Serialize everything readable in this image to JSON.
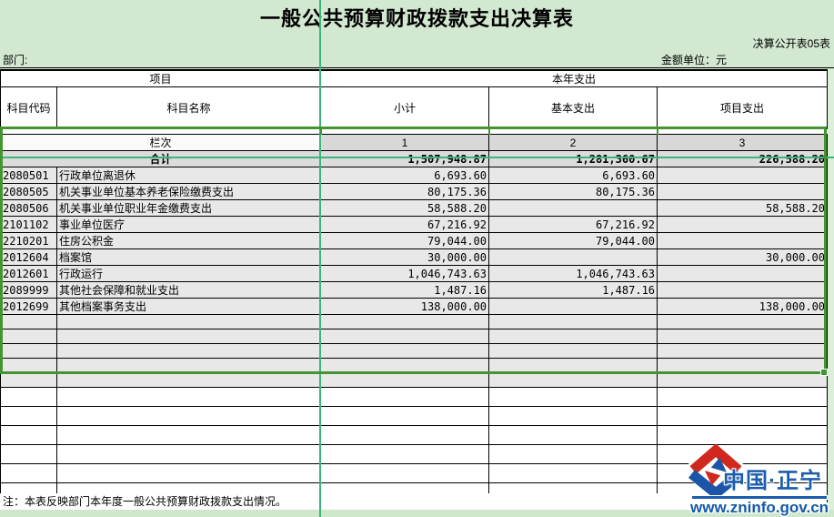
{
  "title": "一般公共预算财政拨款支出决算表",
  "meta": {
    "sheet_label": "决算公开表05表",
    "department_label": "部门:",
    "unit_label": "金额单位：元"
  },
  "table": {
    "header": {
      "group_left": "项目",
      "group_right": "本年支出",
      "col_code": "科目代码",
      "col_name": "科目名称",
      "col_subtotal": "小计",
      "col_basic": "基本支出",
      "col_project": "项目支出"
    },
    "lanci": {
      "label": "栏次",
      "cols": [
        "1",
        "2",
        "3"
      ]
    },
    "total": {
      "label": "合计",
      "subtotal": "1,507,948.87",
      "basic": "1,281,360.67",
      "project": "226,588.20"
    },
    "rows": [
      {
        "code": "2080501",
        "name": "行政单位离退休",
        "subtotal": "6,693.60",
        "basic": "6,693.60",
        "project": ""
      },
      {
        "code": "2080505",
        "name": "机关事业单位基本养老保险缴费支出",
        "subtotal": "80,175.36",
        "basic": "80,175.36",
        "project": ""
      },
      {
        "code": "2080506",
        "name": "机关事业单位职业年金缴费支出",
        "subtotal": "58,588.20",
        "basic": "",
        "project": "58,588.20"
      },
      {
        "code": "2101102",
        "name": "事业单位医疗",
        "subtotal": "67,216.92",
        "basic": "67,216.92",
        "project": ""
      },
      {
        "code": "2210201",
        "name": "住房公积金",
        "subtotal": "79,044.00",
        "basic": "79,044.00",
        "project": ""
      },
      {
        "code": "2012604",
        "name": "档案馆",
        "subtotal": "30,000.00",
        "basic": "",
        "project": "30,000.00"
      },
      {
        "code": "2012601",
        "name": "行政运行",
        "subtotal": "1,046,743.63",
        "basic": "1,046,743.63",
        "project": ""
      },
      {
        "code": "2089999",
        "name": "其他社会保障和就业支出",
        "subtotal": "1,487.16",
        "basic": "1,487.16",
        "project": ""
      },
      {
        "code": "2012699",
        "name": "其他档案事务支出",
        "subtotal": "138,000.00",
        "basic": "",
        "project": "138,000.00"
      }
    ],
    "empty_selected_rows": 5,
    "empty_white_rows": 6
  },
  "note": "注：本表反映部门本年度一般公共预算财政拨款支出情况。",
  "watermark": {
    "name": "中国·正宁",
    "url": "www.zninfo.gov.cn"
  },
  "colors": {
    "band_green": "#d2e8d0",
    "page_break_teal": "#3ab57b",
    "selection_green": "#459432",
    "fill_gray": "#d8d8d8",
    "selected_tint_gray": "#e8e8e8",
    "logo_blue": "#1b5cad",
    "logo_red": "#d0281c"
  }
}
